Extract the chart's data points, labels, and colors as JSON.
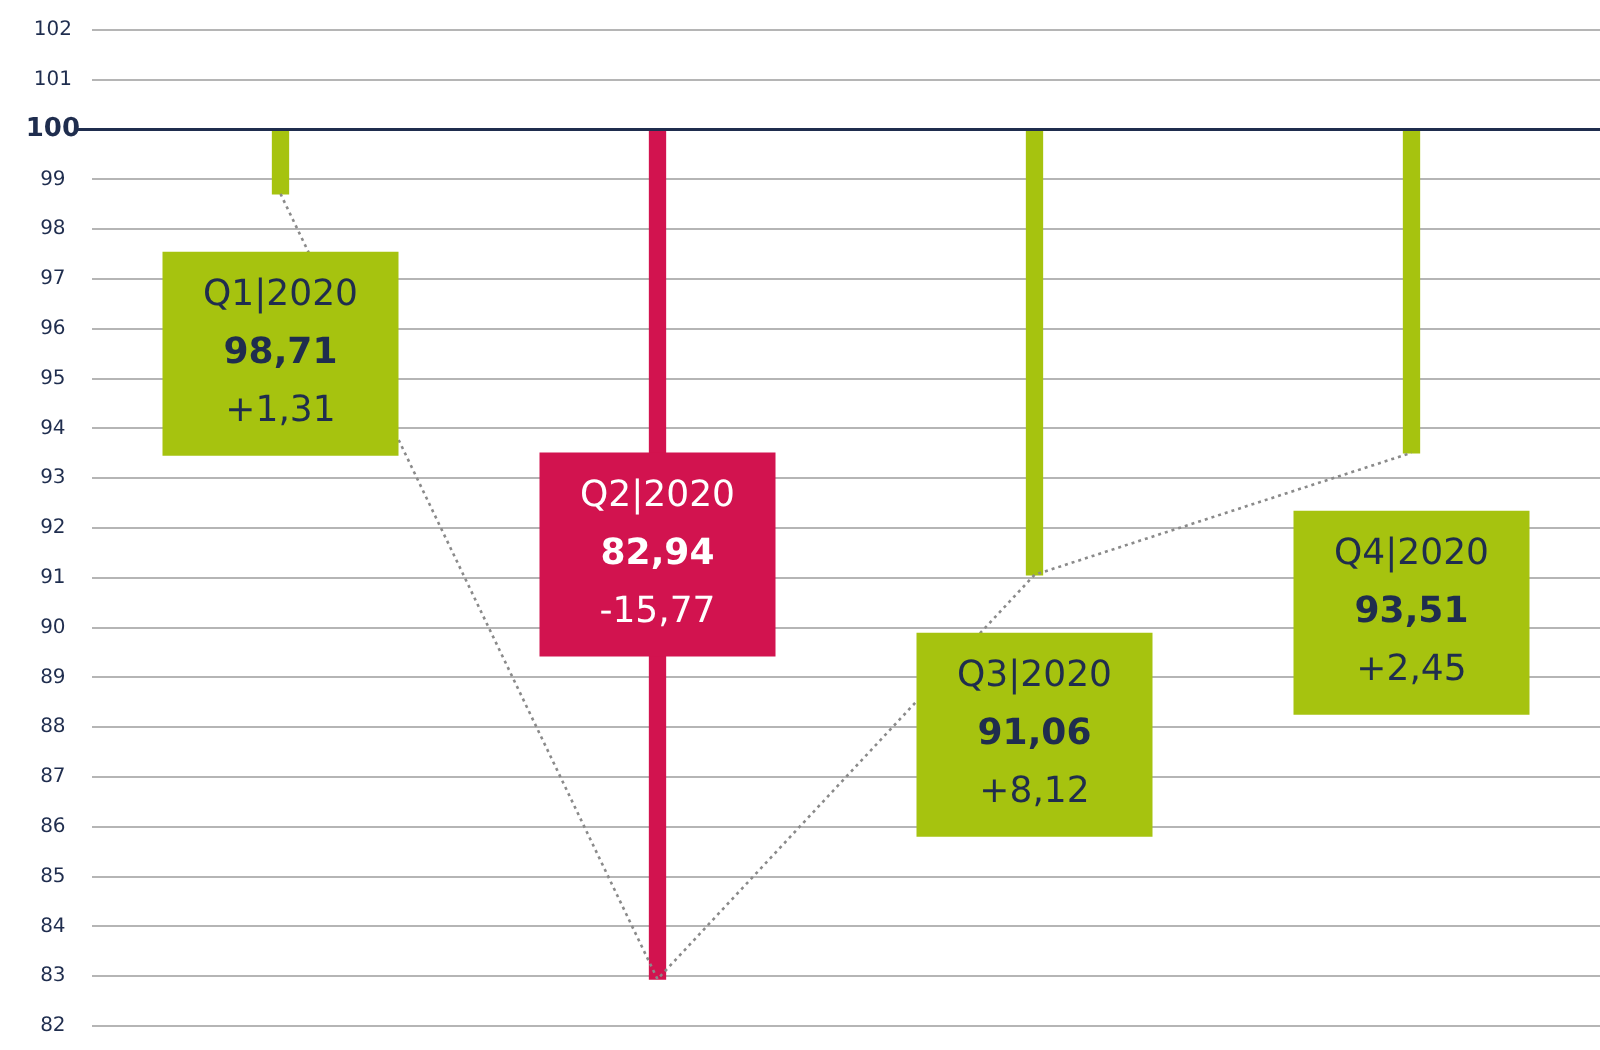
{
  "chart_data": {
    "type": "bar",
    "categories": [
      null,
      null,
      null,
      null
    ],
    "ylim": [
      82,
      102
    ],
    "yticks": [
      82,
      83,
      84,
      85,
      86,
      87,
      88,
      89,
      90,
      91,
      92,
      93,
      94,
      95,
      96,
      97,
      98,
      99,
      100,
      101,
      102
    ],
    "tick_labels": "y",
    "grid": "y",
    "legend": false,
    "series": [
      {
        "colors": [
          "#a6c30f",
          "#d2134f",
          "#a6c30f",
          "#a6c30f"
        ],
        "base": [
          100,
          100,
          100,
          100
        ],
        "values": [
          -1.29,
          -17.06,
          -8.94,
          -6.49
        ]
      },
      {
        "type": "line",
        "values": [
          98.71,
          82.94,
          91.06,
          93.51
        ],
        "color": "#8a8a8a",
        "line_style": "dotted",
        "marker": "none"
      }
    ],
    "ref_lines": [
      {
        "axis": "y",
        "value": 100,
        "color": "#1f2d4e"
      }
    ],
    "annotations": [
      "Q1|2020\n98,71\n+1,31",
      "Q2|2020\n82,94\n-15,77",
      "Q3|2020\n91,06\n+8,12",
      "Q4|2020\n93,51\n+2,45"
    ]
  }
}
